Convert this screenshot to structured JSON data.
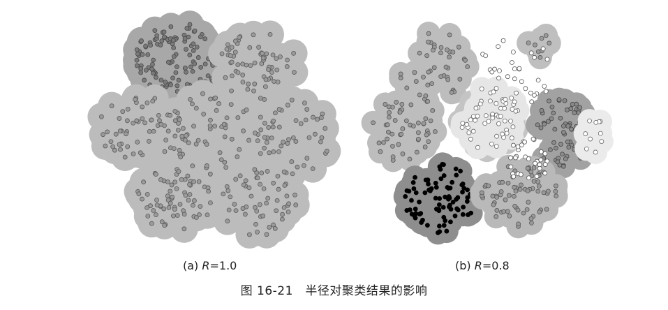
{
  "panels": [
    {
      "id": "a",
      "label_prefix": "(a) ",
      "label_var": "R",
      "label_suffix": "=1.0",
      "clusters": [
        {
          "shade": "#a8a8a8",
          "point": "#7a7a7a",
          "point_stroke": "#4a4a4a",
          "count": 120
        },
        {
          "shade": "#bcbcbc",
          "point": "#9a9a9a",
          "point_stroke": "#5a5a5a",
          "count": 360
        }
      ]
    },
    {
      "id": "b",
      "label_prefix": "(b) ",
      "label_var": "R",
      "label_suffix": "=0.8",
      "clusters": [
        {
          "shade": "#bdbdbd",
          "point": "#9a9a9a",
          "point_stroke": "#555555",
          "count": 95
        },
        {
          "shade": "#c4c4c4",
          "point": "#9f9f9f",
          "point_stroke": "#555555",
          "count": 60
        },
        {
          "shade": "#8e8e8e",
          "point": "#000000",
          "point_stroke": "#000000",
          "count": 85
        },
        {
          "shade": "#a2a2a2",
          "point": "#8a8a8a",
          "point_stroke": "#444444",
          "count": 70
        },
        {
          "shade": "#b9b9b9",
          "point": "#999999",
          "point_stroke": "#555555",
          "count": 70
        },
        {
          "shade": "#e6e6e6",
          "point": "#ffffff",
          "point_stroke": "#666666",
          "count": 55
        },
        {
          "shade": "#bfbfbf",
          "point": "#9a9a9a",
          "point_stroke": "#555555",
          "count": 8
        },
        {
          "shade": "#ebebeb",
          "point": "#ffffff",
          "point_stroke": "#666666",
          "count": 10
        }
      ],
      "noise": {
        "point": "#ffffff",
        "point_stroke": "#555555",
        "count": 60
      }
    }
  ],
  "figure_title": "图 16-21　半径对聚类结果的影响"
}
